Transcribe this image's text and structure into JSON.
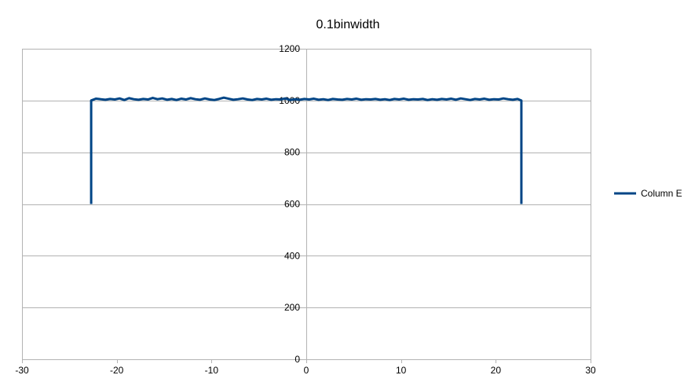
{
  "chart_data": {
    "type": "line",
    "title": "0.1binwidth",
    "xlabel": "",
    "ylabel": "",
    "xlim": [
      -30,
      30
    ],
    "ylim": [
      0,
      1200
    ],
    "x_ticks": [
      -30,
      -20,
      -10,
      0,
      10,
      20,
      30
    ],
    "y_ticks": [
      0,
      200,
      400,
      600,
      800,
      1000,
      1200
    ],
    "grid": true,
    "legend_position": "right",
    "series": [
      {
        "name": "Column E",
        "color": "#004586",
        "points": [
          [
            -22.7,
            600
          ],
          [
            -22.7,
            1000
          ],
          [
            -22.2,
            1007
          ],
          [
            -21.7,
            1005
          ],
          [
            -21.2,
            1003
          ],
          [
            -20.7,
            1006
          ],
          [
            -20.2,
            1004
          ],
          [
            -19.7,
            1008
          ],
          [
            -19.2,
            1002
          ],
          [
            -18.7,
            1009
          ],
          [
            -18.2,
            1005
          ],
          [
            -17.7,
            1003
          ],
          [
            -17.2,
            1006
          ],
          [
            -16.7,
            1004
          ],
          [
            -16.2,
            1010
          ],
          [
            -15.7,
            1005
          ],
          [
            -15.2,
            1008
          ],
          [
            -14.7,
            1003
          ],
          [
            -14.2,
            1006
          ],
          [
            -13.7,
            1002
          ],
          [
            -13.2,
            1007
          ],
          [
            -12.7,
            1004
          ],
          [
            -12.2,
            1009
          ],
          [
            -11.7,
            1005
          ],
          [
            -11.2,
            1003
          ],
          [
            -10.7,
            1008
          ],
          [
            -10.2,
            1004
          ],
          [
            -9.7,
            1002
          ],
          [
            -9.2,
            1006
          ],
          [
            -8.7,
            1011
          ],
          [
            -8.2,
            1007
          ],
          [
            -7.7,
            1003
          ],
          [
            -7.2,
            1005
          ],
          [
            -6.7,
            1008
          ],
          [
            -6.2,
            1004
          ],
          [
            -5.7,
            1002
          ],
          [
            -5.2,
            1006
          ],
          [
            -4.7,
            1004
          ],
          [
            -4.2,
            1007
          ],
          [
            -3.7,
            1003
          ],
          [
            -3.2,
            1005
          ],
          [
            -2.7,
            1004
          ],
          [
            -2.2,
            1008
          ],
          [
            -1.7,
            1002
          ],
          [
            -1.2,
            1005
          ],
          [
            -0.7,
            1003
          ],
          [
            -0.2,
            1006
          ],
          [
            0.3,
            1004
          ],
          [
            0.8,
            1007
          ],
          [
            1.3,
            1003
          ],
          [
            1.8,
            1005
          ],
          [
            2.3,
            1002
          ],
          [
            2.8,
            1006
          ],
          [
            3.3,
            1004
          ],
          [
            3.8,
            1003
          ],
          [
            4.3,
            1006
          ],
          [
            4.8,
            1004
          ],
          [
            5.3,
            1007
          ],
          [
            5.8,
            1003
          ],
          [
            6.3,
            1005
          ],
          [
            6.8,
            1004
          ],
          [
            7.3,
            1006
          ],
          [
            7.8,
            1003
          ],
          [
            8.3,
            1005
          ],
          [
            8.8,
            1002
          ],
          [
            9.3,
            1006
          ],
          [
            9.8,
            1004
          ],
          [
            10.3,
            1007
          ],
          [
            10.8,
            1003
          ],
          [
            11.3,
            1005
          ],
          [
            11.8,
            1004
          ],
          [
            12.3,
            1006
          ],
          [
            12.8,
            1002
          ],
          [
            13.3,
            1005
          ],
          [
            13.8,
            1003
          ],
          [
            14.3,
            1006
          ],
          [
            14.8,
            1004
          ],
          [
            15.3,
            1007
          ],
          [
            15.8,
            1003
          ],
          [
            16.3,
            1008
          ],
          [
            16.8,
            1005
          ],
          [
            17.3,
            1002
          ],
          [
            17.8,
            1006
          ],
          [
            18.3,
            1004
          ],
          [
            18.8,
            1007
          ],
          [
            19.3,
            1003
          ],
          [
            19.8,
            1005
          ],
          [
            20.3,
            1004
          ],
          [
            20.8,
            1008
          ],
          [
            21.3,
            1005
          ],
          [
            21.8,
            1003
          ],
          [
            22.3,
            1006
          ],
          [
            22.7,
            1000
          ],
          [
            22.7,
            600
          ]
        ]
      }
    ]
  }
}
